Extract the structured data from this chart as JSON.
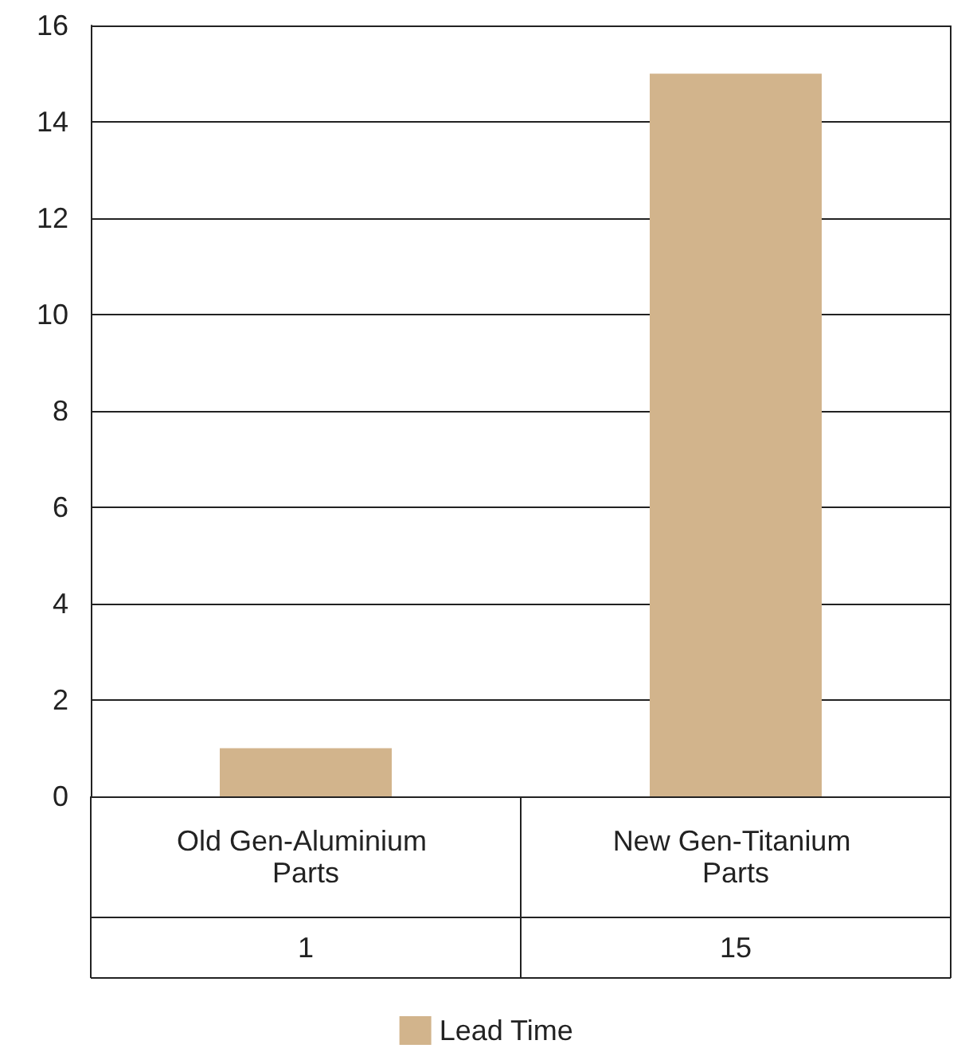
{
  "chart_data": {
    "type": "bar",
    "categories": [
      "Old Gen-Aluminium Parts",
      "New Gen-Titanium Parts"
    ],
    "series": [
      {
        "name": "Lead Time",
        "color": "#d2b48c",
        "values": [
          1,
          15
        ]
      }
    ],
    "ylim": [
      0,
      16
    ],
    "yticks": [
      0,
      2,
      4,
      6,
      8,
      10,
      12,
      14,
      16
    ],
    "grid": "y",
    "legend": "bottom",
    "data_labels": true
  }
}
